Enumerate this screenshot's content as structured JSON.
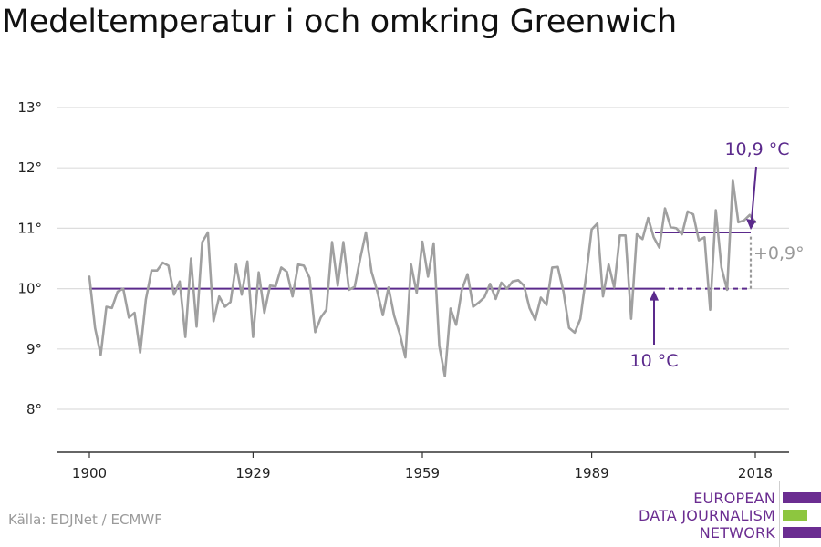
{
  "title": "Medeltemperatur i och omkring Greenwich",
  "source": "Källa: EDJNet / ECMWF",
  "logo": {
    "line1": "EUROPEAN",
    "line2": "DATA JOURNALISM",
    "line3": "NETWORK",
    "colors": [
      "#6b2d91",
      "#8dc63f",
      "#6b2d91"
    ]
  },
  "colors": {
    "series": "#a0a0a0",
    "accent": "#5b2a8c",
    "grid": "#dddddd",
    "axis": "#333333",
    "diff": "#999999"
  },
  "chart_data": {
    "type": "line",
    "title": "Medeltemperatur i och omkring Greenwich",
    "xlabel": "",
    "ylabel": "",
    "xlim": [
      1900,
      2018
    ],
    "ylim": [
      7.3,
      13
    ],
    "x_ticks": [
      {
        "value": 1900,
        "label": "1900"
      },
      {
        "value": 1929,
        "label": "1929"
      },
      {
        "value": 1959,
        "label": "1959"
      },
      {
        "value": 1989,
        "label": "1989"
      },
      {
        "value": 2018,
        "label": "2018"
      }
    ],
    "y_ticks": [
      {
        "value": 8,
        "label": "8°"
      },
      {
        "value": 9,
        "label": "9°"
      },
      {
        "value": 10,
        "label": "10°"
      },
      {
        "value": 11,
        "label": "11°"
      },
      {
        "value": 12,
        "label": "12°"
      },
      {
        "value": 13,
        "label": "13°"
      }
    ],
    "grid": true,
    "series": [
      {
        "x": [
          1900,
          1901,
          1902,
          1903,
          1904,
          1905,
          1906,
          1907,
          1908,
          1909,
          1910,
          1911,
          1912,
          1913,
          1914,
          1915,
          1916,
          1917,
          1918,
          1919,
          1920,
          1921,
          1922,
          1923,
          1924,
          1925,
          1926,
          1927,
          1928,
          1929,
          1930,
          1931,
          1932,
          1933,
          1934,
          1935,
          1936,
          1937,
          1938,
          1939,
          1940,
          1941,
          1942,
          1943,
          1944,
          1945,
          1946,
          1947,
          1948,
          1949,
          1950,
          1951,
          1952,
          1953,
          1954,
          1955,
          1956,
          1957,
          1958,
          1959,
          1960,
          1961,
          1962,
          1963,
          1964,
          1965,
          1966,
          1967,
          1968,
          1969,
          1970,
          1971,
          1972,
          1973,
          1974,
          1975,
          1976,
          1977,
          1978,
          1979,
          1980,
          1981,
          1982,
          1983,
          1984,
          1985,
          1986,
          1987,
          1988,
          1989,
          1990,
          1991,
          1992,
          1993,
          1994,
          1995,
          1996,
          1997,
          1998,
          1999,
          2000,
          2001,
          2002,
          2003,
          2004,
          2005,
          2006,
          2007,
          2008,
          2009,
          2010,
          2011,
          2012,
          2013,
          2014,
          2015,
          2016,
          2017,
          2018
        ],
        "y": [
          10.2,
          9.35,
          8.9,
          9.7,
          9.68,
          9.95,
          10.0,
          9.52,
          9.6,
          8.94,
          9.82,
          10.3,
          10.3,
          10.43,
          10.38,
          9.9,
          10.12,
          9.2,
          10.5,
          9.37,
          10.77,
          10.93,
          9.46,
          9.87,
          9.7,
          9.78,
          10.4,
          9.9,
          10.45,
          9.2,
          10.27,
          9.6,
          10.05,
          10.04,
          10.35,
          10.28,
          9.87,
          10.4,
          10.38,
          10.18,
          9.28,
          9.52,
          9.65,
          10.77,
          10.05,
          10.77,
          9.98,
          10.03,
          10.5,
          10.93,
          10.28,
          9.96,
          9.56,
          10.02,
          9.55,
          9.25,
          8.86,
          10.4,
          9.93,
          10.78,
          10.2,
          10.75,
          9.05,
          8.55,
          9.67,
          9.4,
          9.98,
          10.24,
          9.7,
          9.77,
          9.86,
          10.08,
          9.83,
          10.1,
          10.0,
          10.12,
          10.14,
          10.05,
          9.68,
          9.48,
          9.85,
          9.73,
          10.35,
          10.36,
          9.95,
          9.35,
          9.27,
          9.5,
          10.2,
          10.98,
          11.08,
          9.87,
          10.4,
          10.02,
          10.88,
          10.88,
          9.5,
          10.9,
          10.82,
          11.17,
          10.85,
          10.68,
          11.33,
          11.02,
          11.0,
          10.9,
          11.28,
          11.23,
          10.8,
          10.85,
          9.65,
          11.3,
          10.35,
          9.98,
          11.8,
          11.1,
          11.13,
          11.22,
          11.1
        ]
      }
    ],
    "reference_lines": [
      {
        "label": "10 °C",
        "value": 10.0
      },
      {
        "label": "10,9 °C",
        "value": 10.93
      }
    ],
    "annotations": {
      "ref_low_label": "10 °C",
      "ref_high_label": "10,9 °C",
      "diff_label": "+0,9°"
    }
  }
}
